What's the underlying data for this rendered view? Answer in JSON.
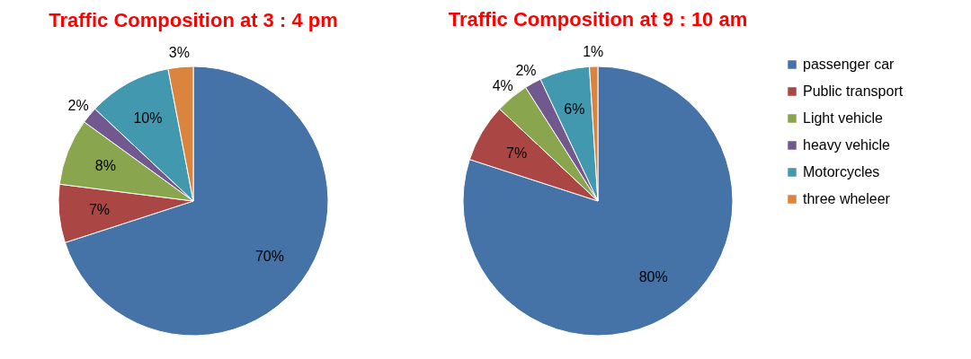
{
  "chart_data": [
    {
      "type": "pie",
      "title": "Traffic Composition at 3 : 4 pm",
      "categories": [
        null,
        null,
        null,
        null,
        null,
        null
      ],
      "values": [
        70,
        7,
        8,
        2,
        10,
        3
      ],
      "value_labels": [
        "70%",
        "7%",
        "8%",
        "2%",
        "10%",
        "3%"
      ],
      "colors": [
        "#4572a7",
        "#aa4643",
        "#89a54e",
        "#71588f",
        "#4198af",
        "#db843d"
      ],
      "legend": false
    },
    {
      "type": "pie",
      "title": "Traffic Composition at 9 : 10  am",
      "categories": [
        "passenger car",
        "Public transport",
        "Light vehicle",
        "heavy vehicle",
        "Motorcycles",
        "three wheleer"
      ],
      "values": [
        80,
        7,
        4,
        2,
        6,
        1
      ],
      "value_labels": [
        "80%",
        "7%",
        "4%",
        "2%",
        "6%",
        "1%"
      ],
      "colors": [
        "#4572a7",
        "#aa4643",
        "#89a54e",
        "#71588f",
        "#4198af",
        "#db843d"
      ],
      "legend": "right"
    }
  ]
}
